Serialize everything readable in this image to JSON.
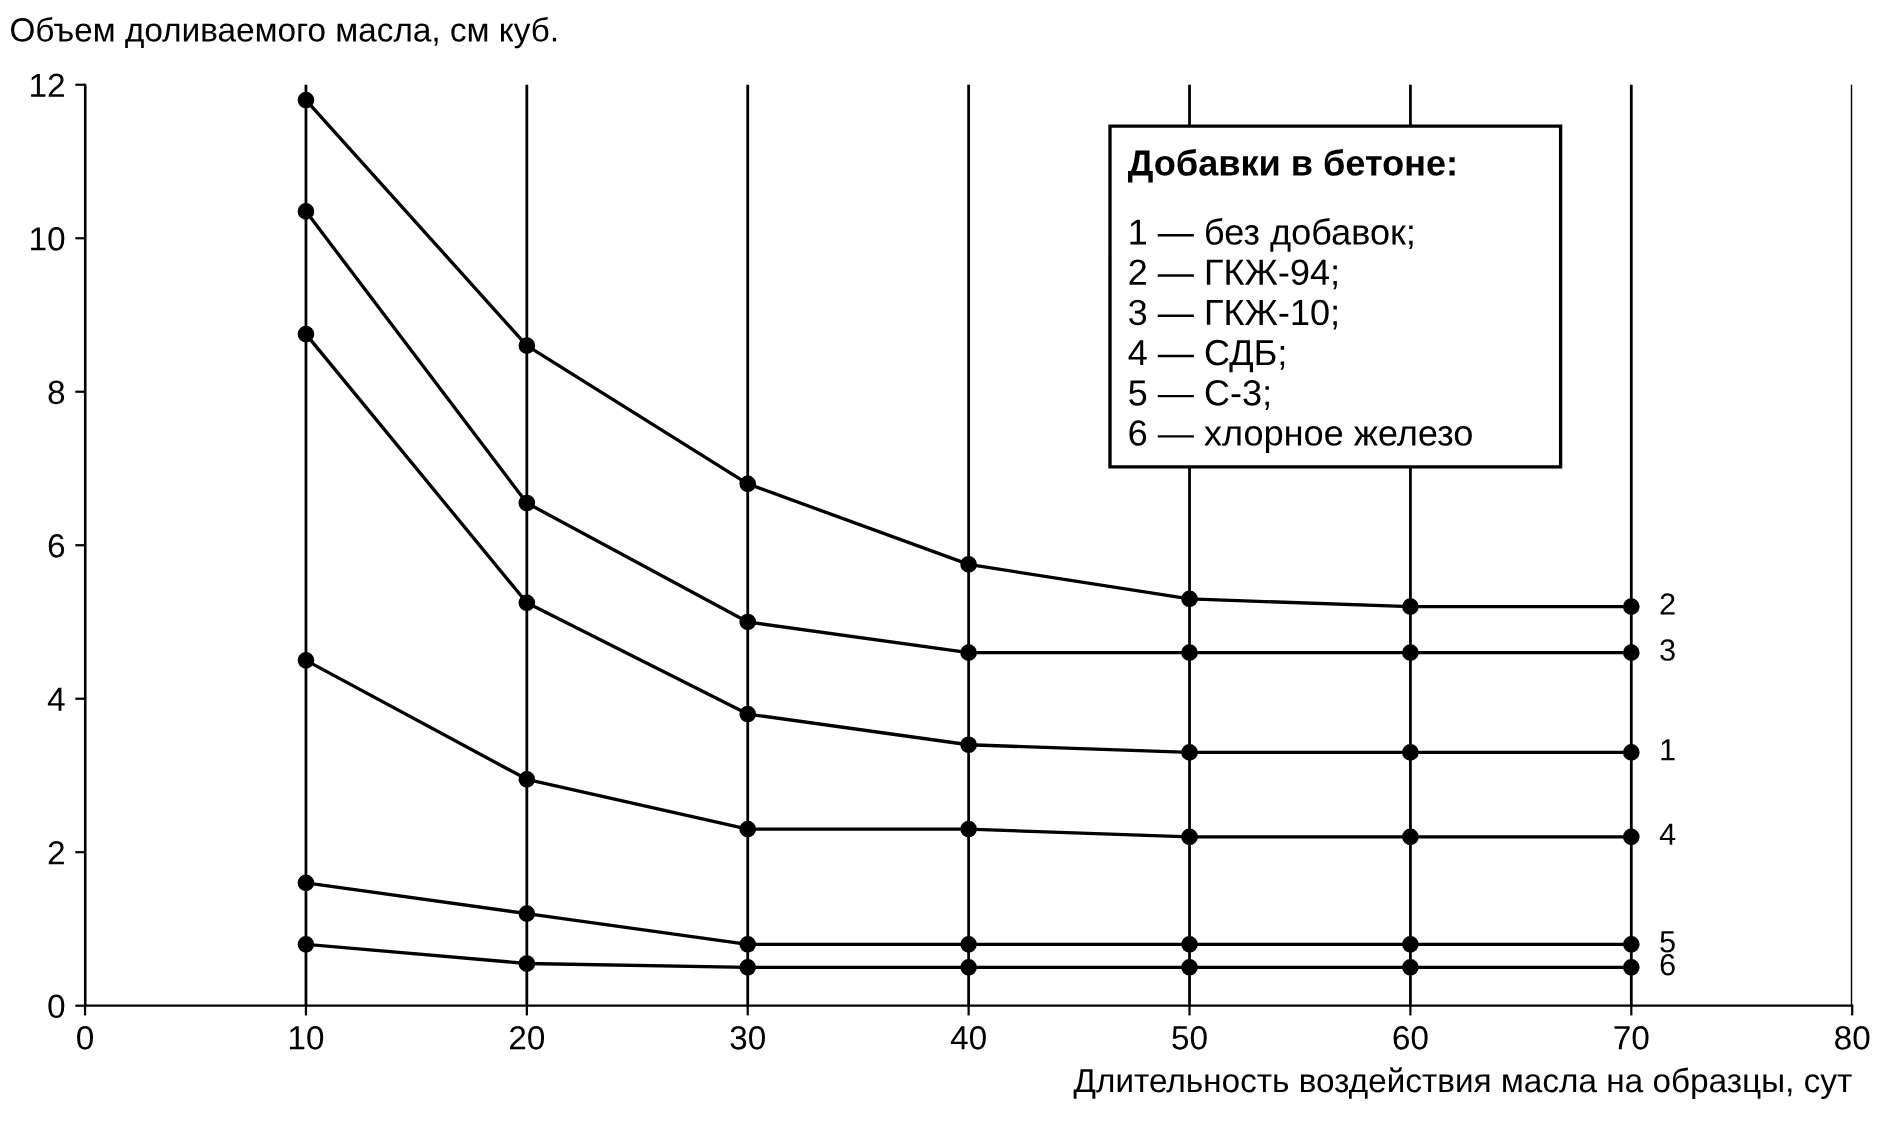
{
  "chart_data": {
    "type": "line",
    "ylabel": "Объем доливаемого масла, см куб.",
    "xlabel": "Длительность воздействия масла на образцы, сут",
    "legend_title": "Добавки в бетоне:",
    "annotations": [
      "1 — без добавок;",
      "2 — ГКЖ-94;",
      "3 — ГКЖ-10;",
      "4 — СДБ;",
      "5 — С-3;",
      "6 — хлорное железо"
    ],
    "x": [
      10,
      20,
      30,
      40,
      50,
      60,
      70
    ],
    "series": [
      {
        "name": "2",
        "color": "#000000",
        "values": [
          11.8,
          8.6,
          6.8,
          5.75,
          5.3,
          5.2,
          5.2
        ]
      },
      {
        "name": "3",
        "color": "#000000",
        "values": [
          10.35,
          6.55,
          5.0,
          4.6,
          4.6,
          4.6,
          4.6
        ]
      },
      {
        "name": "1",
        "color": "#000000",
        "values": [
          8.75,
          5.25,
          3.8,
          3.4,
          3.3,
          3.3,
          3.3
        ]
      },
      {
        "name": "4",
        "color": "#000000",
        "values": [
          4.5,
          2.95,
          2.3,
          2.3,
          2.2,
          2.2,
          2.2
        ]
      },
      {
        "name": "5",
        "color": "#000000",
        "values": [
          1.6,
          1.2,
          0.8,
          0.8,
          0.8,
          0.8,
          0.8
        ]
      },
      {
        "name": "6",
        "color": "#000000",
        "values": [
          0.8,
          0.55,
          0.5,
          0.5,
          0.5,
          0.5,
          0.5
        ]
      }
    ],
    "xlim": [
      0,
      80
    ],
    "xticks": [
      0,
      10,
      20,
      30,
      40,
      50,
      60,
      70,
      80
    ],
    "ylim": [
      0,
      12
    ],
    "yticks": [
      0,
      2,
      4,
      6,
      8,
      10,
      12
    ],
    "grid": "x",
    "marker": "circle",
    "line_style": "solid"
  }
}
